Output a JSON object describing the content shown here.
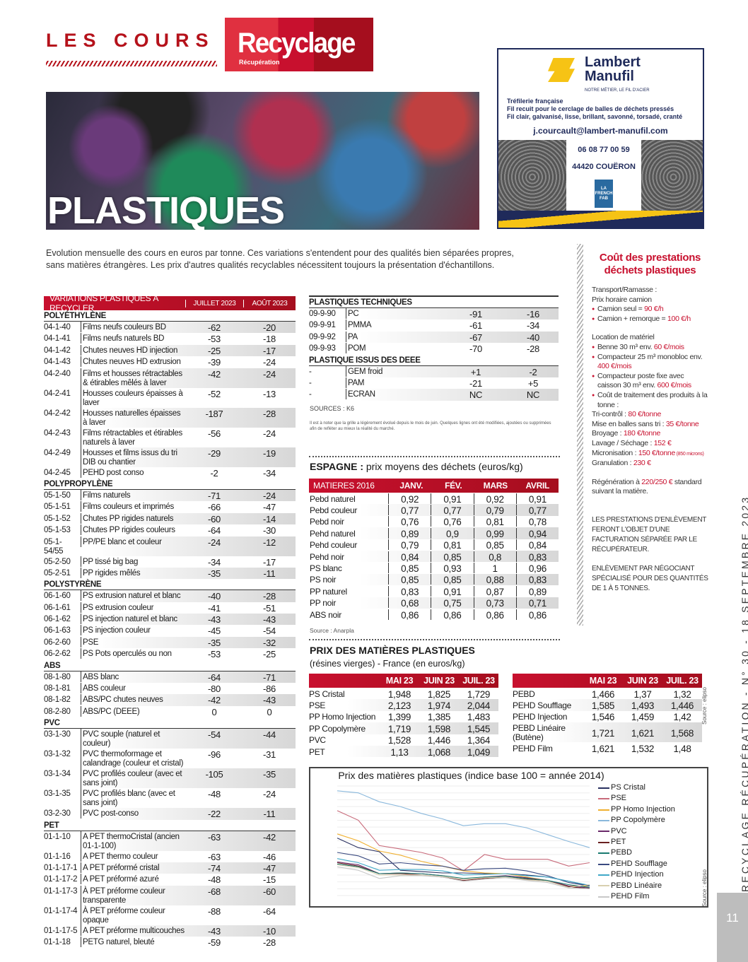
{
  "header": {
    "title": "LES COURS DE",
    "logo_main": "Recyclage",
    "logo_sub": "Récupération"
  },
  "photo": {
    "title": "PLASTIQUES"
  },
  "ad": {
    "brand_line1": "Lambert",
    "brand_line2": "Manufil",
    "tagline": "NOTRE MÉTIER, LE FIL D'ACIER",
    "lines": [
      "Tréfilerie française",
      "Fil recuit pour le cerclage de balles de déchets pressés",
      "Fil clair, galvanisé, lisse, brillant, savonné, torsadé, cranté"
    ],
    "email": "j.courcault@lambert-manufil.com",
    "phone": "06 08 77 00 59",
    "city": "44420 COUËRON",
    "badge": "LA FRENCH FAB",
    "colors": {
      "navy": "#1f2a5a",
      "yellow": "#f6c315"
    }
  },
  "intro": "Evolution mensuelle des cours en euros par tonne. Ces variations s'entendent pour des qualités bien séparées propres, sans matières étrangères. Les prix d'autres qualités recyclables nécessitent toujours la présentation d'échantillons.",
  "variations": {
    "headers": [
      "VARIATIONS PLASTIQUES À RECYCLER",
      "JUILLET 2023",
      "AOÛT 2023"
    ],
    "sections": [
      {
        "title": "POLYÉTHYLÈNE",
        "rows": [
          [
            "04-1-40",
            "Films neufs couleurs BD",
            "-62",
            "-20"
          ],
          [
            "04-1-41",
            "Films neufs naturels BD",
            "-53",
            "-18"
          ],
          [
            "04-1-42",
            "Chutes neuves HD injection",
            "-25",
            "-17"
          ],
          [
            "04-1-43",
            "Chutes neuves HD extrusion",
            "-39",
            "-24"
          ],
          [
            "04-2-40",
            "Films et housses rétractables & étirables mêlés à laver",
            "-42",
            "-24"
          ],
          [
            "04-2-41",
            "Housses couleurs épaisses à laver",
            "-52",
            "-13"
          ],
          [
            "04-2-42",
            "Housses naturelles épaisses à laver",
            "-187",
            "-28"
          ],
          [
            "04-2-43",
            "Films rétractables et étirables naturels à laver",
            "-56",
            "-24"
          ],
          [
            "04-2-49",
            "Housses et films issus du tri DIB ou chantier",
            "-29",
            "-19"
          ],
          [
            "04-2-45",
            "PEHD post conso",
            "-2",
            "-34"
          ]
        ]
      },
      {
        "title": "POLYPROPYLÈNE",
        "rows": [
          [
            "05-1-50",
            "Films naturels",
            "-71",
            "-24"
          ],
          [
            "05-1-51",
            "Films couleurs et imprimés",
            "-66",
            "-47"
          ],
          [
            "05-1-52",
            "Chutes PP rigides naturels",
            "-60",
            "-14"
          ],
          [
            "05-1-53",
            "Chutes PP rigides couleurs",
            "-64",
            "-30"
          ],
          [
            "05-1-54/55",
            "PP/PE blanc et couleur",
            "-24",
            "-12"
          ],
          [
            "05-2-50",
            "PP tissé big bag",
            "-34",
            "-17"
          ],
          [
            "05-2-51",
            "PP rigides mêlés",
            "-35",
            "-11"
          ]
        ]
      },
      {
        "title": "POLYSTYRÈNE",
        "rows": [
          [
            "06-1-60",
            "PS extrusion naturel et blanc",
            "-40",
            "-28"
          ],
          [
            "06-1-61",
            "PS extrusion couleur",
            "-41",
            "-51"
          ],
          [
            "06-1-62",
            "PS injection naturel et blanc",
            "-43",
            "-43"
          ],
          [
            "06-1-63",
            "PS injection couleur",
            "-45",
            "-54"
          ],
          [
            "06-2-60",
            "PSE",
            "-35",
            "-32"
          ],
          [
            "06-2-62",
            "PS Pots operculés ou non",
            "-53",
            "-25"
          ]
        ]
      },
      {
        "title": "ABS",
        "rows": [
          [
            "08-1-80",
            "ABS blanc",
            "-64",
            "-71"
          ],
          [
            "08-1-81",
            "ABS couleur",
            "-80",
            "-86"
          ],
          [
            "08-1-82",
            "ABS/PC chutes neuves",
            "-42",
            "-43"
          ],
          [
            "08-2-80",
            "ABS/PC (DEEE)",
            "0",
            "0"
          ]
        ]
      },
      {
        "title": "PVC",
        "rows": [
          [
            "03-1-30",
            "PVC souple (naturel et couleur)",
            "-54",
            "-44"
          ],
          [
            "03-1-32",
            "PVC thermoformage et calandrage (couleur et cristal)",
            "-96",
            "-31"
          ],
          [
            "03-1-34",
            "PVC profilés couleur (avec et sans joint)",
            "-105",
            "-35"
          ],
          [
            "03-1-35",
            "PVC profilés blanc (avec et sans joint)",
            "-48",
            "-24"
          ],
          [
            "03-2-30",
            "PVC post-conso",
            "-22",
            "-11"
          ]
        ]
      },
      {
        "title": "PET",
        "rows": [
          [
            "01-1-10",
            "A PET thermoCristal (ancien 01-1-100)",
            "-63",
            "-42"
          ],
          [
            "01-1-16",
            "A PET thermo couleur",
            "-63",
            "-46"
          ],
          [
            "01-1-17-1",
            "A PET préformé cristal",
            "-74",
            "-47"
          ],
          [
            "01-1-17-2",
            "A PET préformé azuré",
            "-48",
            "-15"
          ],
          [
            "01-1-17-3",
            "À PET préforme couleur transparente",
            "-68",
            "-60"
          ],
          [
            "01-1-17-4",
            "À PET préforme couleur opaque",
            "-88",
            "-64"
          ],
          [
            "01-1-17-5",
            "A PET préforme multicouches",
            "-43",
            "-10"
          ],
          [
            "01-1-18",
            "PETG naturel, bleuté",
            "-59",
            "-28"
          ]
        ]
      }
    ]
  },
  "technical": {
    "sections": [
      {
        "title": "PLASTIQUES TECHNIQUES",
        "rows": [
          [
            "09-9-90",
            "PC",
            "-91",
            "-16"
          ],
          [
            "09-9-91",
            "PMMA",
            "-61",
            "-34"
          ],
          [
            "09-9-92",
            "PA",
            "-67",
            "-40"
          ],
          [
            "09-9-93",
            "POM",
            "-70",
            "-28"
          ]
        ]
      },
      {
        "title": "PLASTIQUE ISSUS DES DEEE",
        "rows": [
          [
            "-",
            "GEM froid",
            "+1",
            "-2"
          ],
          [
            "-",
            "PAM",
            "-21",
            "+5"
          ],
          [
            "-",
            "ECRAN",
            "NC",
            "NC"
          ]
        ]
      }
    ],
    "sources": "SOURCES : K6",
    "note": "Il est à noter que la grille a légèrement évolué depuis le mois de juin. Quelques lignes ont été modifiées, ajoutées ou supprimées afin de refléter au mieux la réalité du marché."
  },
  "espagne": {
    "title_bold": "ESPAGNE :",
    "title_rest": " prix moyens des déchets (euros/kg)",
    "headers": [
      "MATIERES 2016",
      "JANV.",
      "FÉV.",
      "MARS",
      "AVRIL"
    ],
    "rows": [
      [
        "Pebd naturel",
        "0,92",
        "0,91",
        "0,92",
        "0,91"
      ],
      [
        "Pebd couleur",
        "0,77",
        "0,77",
        "0,79",
        "0,77"
      ],
      [
        "Pebd noir",
        "0,76",
        "0,76",
        "0,81",
        "0,78"
      ],
      [
        "Pehd naturel",
        "0,89",
        "0,9",
        "0,99",
        "0,94"
      ],
      [
        "Pehd couleur",
        "0,79",
        "0,81",
        "0,85",
        "0,84"
      ],
      [
        "Pehd noir",
        "0,84",
        "0,85",
        "0,8",
        "0,83"
      ],
      [
        "PS blanc",
        "0,85",
        "0,93",
        "1",
        "0,96"
      ],
      [
        "PS noir",
        "0,85",
        "0,85",
        "0,88",
        "0,83"
      ],
      [
        "PP naturel",
        "0,83",
        "0,91",
        "0,87",
        "0,89"
      ],
      [
        "PP noir",
        "0,68",
        "0,75",
        "0,73",
        "0,71"
      ],
      [
        "ABS noir",
        "0,86",
        "0,86",
        "0,86",
        "0,86"
      ]
    ],
    "source": "Source : Anarpla"
  },
  "prix": {
    "title": "PRIX DES MATIÈRES PLASTIQUES",
    "subtitle": "(résines vierges) - France (en euros/kg)",
    "headers": [
      "",
      "MAI 23",
      "JUIN 23",
      "JUIL. 23"
    ],
    "left": [
      [
        "PS Cristal",
        "1,948",
        "1,825",
        "1,729"
      ],
      [
        "PSE",
        "2,123",
        "1,974",
        "2,044"
      ],
      [
        "PP Homo Injection",
        "1,399",
        "1,385",
        "1,483"
      ],
      [
        "PP Copolymère",
        "1,719",
        "1,598",
        "1,545"
      ],
      [
        "PVC",
        "1,528",
        "1,446",
        "1,364"
      ],
      [
        "PET",
        "1,13",
        "1,068",
        "1,049"
      ]
    ],
    "right": [
      [
        "PEBD",
        "1,466",
        "1,37",
        "1,32"
      ],
      [
        "PEHD Soufflage",
        "1,585",
        "1,493",
        "1,446"
      ],
      [
        "PEHD Injection",
        "1,546",
        "1,459",
        "1,42"
      ],
      [
        "PEBD Linéaire (Butène)",
        "1,721",
        "1,621",
        "1,568"
      ],
      [
        "PEHD Film",
        "1,621",
        "1,532",
        "1,48"
      ]
    ],
    "source": "Source : elipso"
  },
  "chart_data": {
    "type": "line",
    "title": "Prix des matières plastiques (indice base 100 = année 2014)",
    "legend_position": "right",
    "grid": true,
    "series": [
      {
        "name": "PS Cristal",
        "color": "#2a3060",
        "values": [
          84,
          70,
          64,
          37,
          35,
          33,
          33,
          32,
          32,
          30,
          27,
          21,
          14
        ]
      },
      {
        "name": "PSE",
        "color": "#c86a7a",
        "values": [
          124,
          110,
          73,
          68,
          63,
          55,
          36,
          60,
          53,
          53,
          53,
          43,
          48
        ]
      },
      {
        "name": "PP Homo Injection",
        "color": "#f0b030",
        "values": [
          90,
          80,
          65,
          59,
          50,
          43,
          36,
          33,
          32,
          27,
          22,
          14,
          14
        ]
      },
      {
        "name": "PP Copolymère",
        "color": "#8ab8dc",
        "values": [
          153,
          150,
          137,
          130,
          120,
          112,
          102,
          105,
          105,
          99,
          89,
          79,
          70
        ]
      },
      {
        "name": "PVC",
        "color": "#6a2a6a",
        "values": [
          49,
          45,
          32,
          33,
          32,
          29,
          24,
          27,
          29,
          26,
          22,
          14,
          11
        ]
      },
      {
        "name": "PET",
        "color": "#6a2020",
        "values": [
          48,
          43,
          32,
          32,
          30,
          27,
          22,
          25,
          27,
          24,
          21,
          13,
          10
        ]
      },
      {
        "name": "PEBD",
        "color": "#1a7a70",
        "values": [
          46,
          42,
          32,
          33,
          32,
          29,
          25,
          27,
          28,
          25,
          22,
          16,
          12
        ]
      },
      {
        "name": "PEHD Soufflage",
        "color": "#3a4a80",
        "values": [
          63,
          58,
          46,
          48,
          45,
          43,
          37,
          39,
          40,
          36,
          29,
          19,
          14
        ]
      },
      {
        "name": "PEHD Injection",
        "color": "#40a8c8",
        "values": [
          54,
          48,
          37,
          38,
          38,
          36,
          30,
          31,
          32,
          29,
          27,
          21,
          15
        ]
      },
      {
        "name": "PEBD Linéaire",
        "color": "#d8d0b0",
        "values": [
          45,
          41,
          30,
          30,
          30,
          28,
          24,
          26,
          27,
          23,
          21,
          12,
          16
        ]
      },
      {
        "name": "PEHD Film",
        "color": "#c8c8c8",
        "values": [
          42,
          37,
          25,
          29,
          29,
          27,
          21,
          24,
          26,
          22,
          19,
          11,
          10
        ]
      }
    ]
  },
  "sidebar": {
    "title": "Coût des prestations déchets plastiques",
    "transport_head": "Transport/Ramasse :",
    "transport_sub": "Prix horaire camion",
    "transport_items": [
      [
        "Camion seul = ",
        "90 €/h"
      ],
      [
        "Camion + remorque = ",
        "100 €/h"
      ]
    ],
    "location_head": "Location de matériel",
    "location_items": [
      [
        "Benne 30 m³ env. ",
        "60 €/mois"
      ],
      [
        "Compacteur 25 m³ monobloc env. ",
        "400 €/mois"
      ],
      [
        "Compacteur poste fixe avec caisson 30 m³ env. ",
        "600 €/mois"
      ],
      [
        "Coût de traitement des produits à la tonne :",
        ""
      ]
    ],
    "costs": [
      [
        "Tri-contrôl : ",
        "80 €/tonne",
        ""
      ],
      [
        "Mise en balles sans tri : ",
        "35 €/tonne",
        ""
      ],
      [
        "Broyage : ",
        "180 €/tonne",
        ""
      ],
      [
        "Lavage / Séchage : ",
        "152 €",
        ""
      ],
      [
        "Micronisation : ",
        "150 €/tonne",
        " (850 microns)"
      ],
      [
        "Granulation : ",
        "230 €",
        ""
      ]
    ],
    "regen_pre": "Régénération à ",
    "regen_val": "220/250 €",
    "regen_post": " standard suivant la matière.",
    "note1": "LES PRESTATIONS D'ENLÈVEMENT FERONT L'OBJET D'UNE FACTURATION SÉPARÉE PAR LE RÉCUPÉRATEUR.",
    "note2": "ENLÈVEMENT PAR NÉGOCIANT SPÉCIALISÉ POUR DES QUANTITÉS DE 1 À 5 TONNES."
  },
  "footer": {
    "running_title": "RECYCLAGE RÉCUPÉRATION - N° 30 - 18 SEPTEMBRE 2023",
    "page_number": "11"
  },
  "colors": {
    "accent": "#c8102e"
  }
}
